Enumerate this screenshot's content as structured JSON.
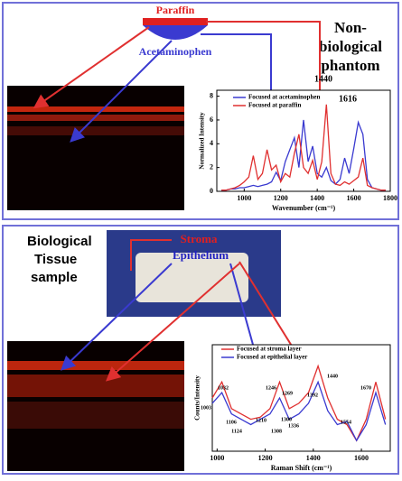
{
  "panel_top": {
    "top_label": "Paraffin",
    "bottom_label": "Acetaminophen",
    "caption_lines": [
      "Non-",
      "biological",
      "phantom"
    ]
  },
  "panel_bottom": {
    "caption_lines": [
      "Biological",
      "Tissue",
      "sample"
    ],
    "top_label": "Stroma",
    "bottom_label": "Epithelium"
  },
  "chart_data": [
    {
      "type": "line",
      "x_label": "Wavenumber (cm⁻¹)",
      "y_label": "Normalized Intensity",
      "x": [
        875,
        900,
        925,
        950,
        975,
        1000,
        1025,
        1050,
        1075,
        1100,
        1125,
        1150,
        1175,
        1200,
        1225,
        1250,
        1275,
        1300,
        1325,
        1350,
        1375,
        1400,
        1425,
        1450,
        1475,
        1500,
        1525,
        1550,
        1575,
        1600,
        1625,
        1650,
        1675,
        1700,
        1725,
        1750,
        1775
      ],
      "series": [
        {
          "name": "Focused at acetaminophen",
          "color": "#3a3ad0",
          "values": [
            0.1,
            0.1,
            0.2,
            0.2,
            0.3,
            0.3,
            0.4,
            0.5,
            0.4,
            0.5,
            0.6,
            0.8,
            1.6,
            0.9,
            2.5,
            3.5,
            4.5,
            2.0,
            6.0,
            2.5,
            3.8,
            1.5,
            1.2,
            2.0,
            0.9,
            0.6,
            1.0,
            2.8,
            1.5,
            3.6,
            5.8,
            4.8,
            1.0,
            0.3,
            0.2,
            0.1,
            0.1
          ]
        },
        {
          "name": "Focused at paraffin",
          "color": "#e03030",
          "values": [
            0.1,
            0.1,
            0.2,
            0.3,
            0.5,
            0.8,
            1.2,
            3.0,
            1.0,
            1.5,
            3.5,
            1.8,
            2.2,
            0.8,
            1.5,
            1.2,
            3.2,
            4.8,
            2.0,
            1.5,
            2.6,
            1.0,
            2.5,
            7.3,
            1.5,
            0.6,
            0.5,
            0.8,
            0.6,
            0.9,
            1.2,
            2.8,
            0.5,
            0.3,
            0.2,
            0.1,
            0.1
          ]
        }
      ],
      "xlim": [
        850,
        1800
      ],
      "xticks": [
        1000,
        1200,
        1400,
        1600,
        1800
      ],
      "ylim": [
        0,
        8.5
      ],
      "yticks": [
        0,
        2,
        4,
        6,
        8
      ],
      "annotations": [
        "1440",
        "1616"
      ]
    },
    {
      "type": "line",
      "x_label": "Raman Shift (cm⁻¹)",
      "y_label": "Counts/Intensity",
      "x": [
        980,
        1020,
        1060,
        1100,
        1140,
        1180,
        1220,
        1260,
        1300,
        1340,
        1380,
        1420,
        1460,
        1500,
        1540,
        1580,
        1620,
        1660,
        1700
      ],
      "series": [
        {
          "name": "Focused at stroma layer",
          "color": "#e03030",
          "values": [
            5,
            6.5,
            4,
            3.5,
            3,
            3.2,
            4,
            6.5,
            4,
            4.5,
            5.5,
            8,
            5,
            3,
            2.5,
            1,
            3,
            6.5,
            3
          ]
        },
        {
          "name": "Focused at epithelial layer",
          "color": "#3a3ad0",
          "values": [
            4.5,
            5.5,
            3.5,
            3,
            2.5,
            3,
            3.5,
            5,
            3,
            3.5,
            4.5,
            6.5,
            3.8,
            2.5,
            2.8,
            1,
            2.5,
            5.5,
            2.5
          ]
        }
      ],
      "xlim": [
        980,
        1720
      ],
      "xticks": [
        1000,
        1200,
        1400,
        1600
      ],
      "ylim": [
        0,
        10
      ],
      "annotations": [
        "1003",
        "1032",
        "1106",
        "1124",
        "1210",
        "1246",
        "1269",
        "1300",
        "1308",
        "1336",
        "1392",
        "1440",
        "1554",
        "1670"
      ]
    }
  ]
}
